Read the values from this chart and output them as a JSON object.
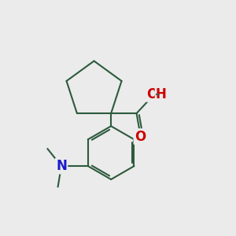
{
  "background_color": "#ebebeb",
  "bond_color": "#2d5a3d",
  "bond_width": 1.5,
  "atom_colors": {
    "O": "#cc0000",
    "N": "#1a1acc",
    "H_red": "#cc0000"
  },
  "font_size_atom": 11,
  "fig_size": [
    3.0,
    3.0
  ],
  "dpi": 100
}
